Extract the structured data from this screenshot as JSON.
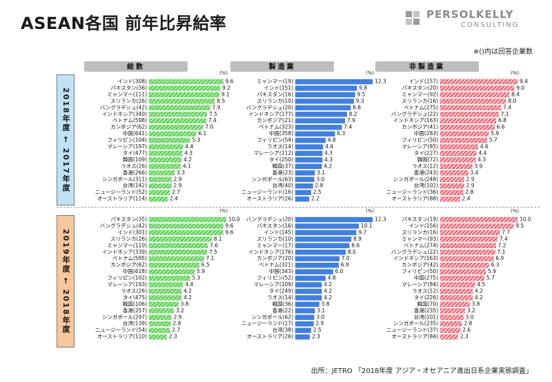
{
  "title": "ASEAN各国 前年比昇給率",
  "logo": {
    "main": "PERSOLKELLY",
    "sub": "CONSULTING"
  },
  "note": "※()内は回答企業数",
  "source": "出所：JETRO 「2018年度 アジア・オセアニア進出日系企業実態調査」",
  "periods": [
    {
      "label": "2018年度 ← 2017年度",
      "color": "#bfe3f5"
    },
    {
      "label": "2019年度 ← 2018年度",
      "color": "#f7c79e"
    }
  ],
  "colors": {
    "total": "#7fe07f",
    "manufacturing": "#3f7fe8",
    "nonmanufacturing": "#f07080",
    "header": "#bdbdbd"
  },
  "chart_data": [
    {
      "type": "bar",
      "panel": "総数",
      "period": "2018年度 ← 2017年度",
      "unit": "(%)",
      "ylim": [
        0,
        10
      ],
      "categories": [
        "インド(308)",
        "パキスタン(36)",
        "ミャンマー(111)",
        "スリランカ(26)",
        "バングラデシュ(42)",
        "インドネシア(340)",
        "ベトナム(598)",
        "カンボジア(62)",
        "中国(641)",
        "フィリピン(104)",
        "マレーシア(197)",
        "タイ(477)",
        "韓国(109)",
        "ラオス(26)",
        "香港(266)",
        "シンガポール(311)",
        "台湾(142)",
        "ニュージーランド(52)",
        "オーストラリア(114)"
      ],
      "values": [
        9.6,
        9.2,
        9.1,
        8.5,
        7.9,
        7.5,
        7.4,
        7.0,
        6.1,
        5.3,
        4.4,
        4.3,
        4.2,
        4.1,
        3.3,
        2.9,
        2.9,
        2.7,
        2.4
      ]
    },
    {
      "type": "bar",
      "panel": "製造業",
      "period": "2018年度 ← 2017年度",
      "unit": "(%)",
      "ylim": [
        0,
        12.3
      ],
      "categories": [
        "ミャンマー(19)",
        "インド(151)",
        "パキスタン(16)",
        "スリランカ(10)",
        "バングラデシュ(20)",
        "インドネシア(177)",
        "カンボジア(21)",
        "ベトナム(323)",
        "中国(358)",
        "フィリピン(54)",
        "ラオス(14)",
        "マレーシア(112)",
        "タイ(250)",
        "韓国(37)",
        "香港(23)",
        "シンガポール(63)",
        "台湾(40)",
        "ニュージーランド(16)",
        "オーストラリア(26)"
      ],
      "values": [
        12.3,
        9.8,
        9.5,
        9.3,
        8.8,
        8.2,
        7.9,
        7.4,
        6.3,
        4.8,
        4.4,
        4.3,
        4.3,
        4.2,
        3.1,
        3.0,
        2.8,
        2.5,
        2.2
      ]
    },
    {
      "type": "bar",
      "panel": "非製造業",
      "period": "2018年度 ← 2017年度",
      "unit": "(%)",
      "ylim": [
        0,
        9.4
      ],
      "categories": [
        "インド(157)",
        "パキスタン(20)",
        "ミャンマー(92)",
        "スリランカ(16)",
        "ベトナム(275)",
        "バングラデシュ(22)",
        "インドネシア(163)",
        "カンボジア(41)",
        "中国(283)",
        "フィリピン(50)",
        "マレーシア(85)",
        "タイ(227)",
        "韓国(72)",
        "ラオス(12)",
        "香港(243)",
        "シンガポール(248)",
        "台湾(102)",
        "ニュージーランド(36)",
        "オーストラリア(88)"
      ],
      "values": [
        9.4,
        9.0,
        8.4,
        8.0,
        7.4,
        7.1,
        6.8,
        6.6,
        5.9,
        5.7,
        4.6,
        4.4,
        4.3,
        3.9,
        3.4,
        2.9,
        2.9,
        2.8,
        2.4
      ]
    },
    {
      "type": "bar",
      "panel": "総数",
      "period": "2019年度 ← 2018年度",
      "unit": "(%)",
      "ylim": [
        0,
        10
      ],
      "categories": [
        "パキスタン(35)",
        "バングラデシュ(42)",
        "インド(301)",
        "スリランカ(26)",
        "ミャンマー(110)",
        "インドネシア(339)",
        "ベトナム(595)",
        "カンボジア(62)",
        "中国(618)",
        "フィリピン(102)",
        "マレーシア(193)",
        "ラオス(26)",
        "タイ(475)",
        "韓国(106)",
        "香港(257)",
        "シンガポール(297)",
        "台湾(139)",
        "ニュージーランド(54)",
        "オーストラリア(110)"
      ],
      "values": [
        10.0,
        9.6,
        9.6,
        8.1,
        7.6,
        7.5,
        7.1,
        6.5,
        5.9,
        5.3,
        4.4,
        4.2,
        4.2,
        3.8,
        3.2,
        2.9,
        2.8,
        2.7,
        2.3
      ]
    },
    {
      "type": "bar",
      "panel": "製造業",
      "period": "2019年度 ← 2018年度",
      "unit": "(%)",
      "ylim": [
        0,
        12.3
      ],
      "categories": [
        "バングラデシュ(20)",
        "パキスタン(16)",
        "インド(145)",
        "スリランカ(10)",
        "ミャンマー(17)",
        "インドネシア(176)",
        "カンボジア(20)",
        "ベトナム(321)",
        "中国(343)",
        "フィリピン(52)",
        "マレーシア(109)",
        "タイ(249)",
        "ラオス(14)",
        "韓国(36)",
        "香港(22)",
        "シンガポール(62)",
        "ニュージーランド(17)",
        "台湾(38)",
        "オーストラリア(26)"
      ],
      "values": [
        12.3,
        10.1,
        9.7,
        8.9,
        8.6,
        8.0,
        7.0,
        6.9,
        6.0,
        4.8,
        4.2,
        4.2,
        4.2,
        3.8,
        3.1,
        3.0,
        2.9,
        2.5,
        2.3
      ]
    },
    {
      "type": "bar",
      "panel": "非製造業",
      "period": "2019年度 ← 2018年度",
      "unit": "(%)",
      "ylim": [
        0,
        10
      ],
      "categories": [
        "パキスタン(19)",
        "インド(156)",
        "スリランカ(16)",
        "ミャンマー(93)",
        "ベトナム(274)",
        "バングラデシュ(22)",
        "インドネシア(163)",
        "カンボジア(42)",
        "フィリピン(50)",
        "中国(275)",
        "マレーシア(84)",
        "ラオス(12)",
        "タイ(226)",
        "韓国(70)",
        "香港(235)",
        "台湾(101)",
        "シンガポール(235)",
        "ニュージーランド(37)",
        "オーストラリア(84)"
      ],
      "values": [
        10.0,
        9.5,
        7.7,
        7.4,
        7.2,
        7.1,
        6.9,
        6.3,
        5.9,
        5.7,
        4.5,
        4.2,
        4.2,
        3.8,
        3.2,
        3.0,
        2.8,
        2.6,
        2.3
      ]
    }
  ],
  "headers": [
    "総数",
    "製造業",
    "非製造業"
  ]
}
